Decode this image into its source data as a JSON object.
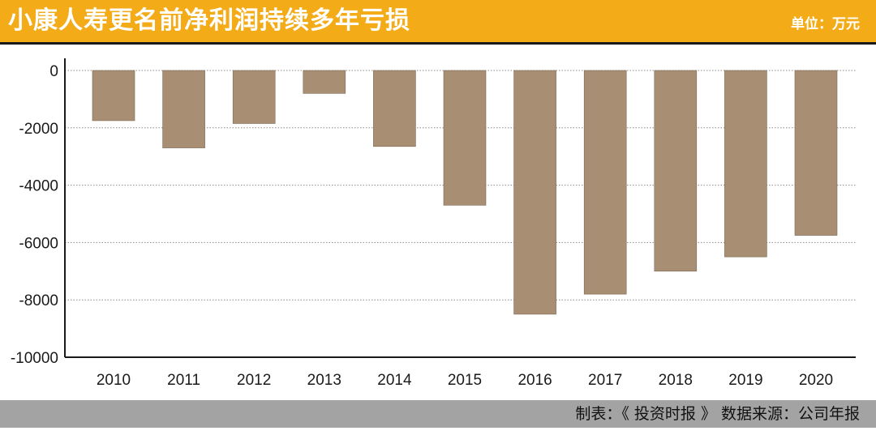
{
  "header": {
    "title": "小康人寿更名前净利润持续多年亏损",
    "unit": "单位：万元"
  },
  "footer": {
    "source": "制表：《 投资时报 》 数据来源：公司年报"
  },
  "colors": {
    "header_bg": "#f3ab18",
    "bar": "#a88e72",
    "footer_bg": "#a3a3a3"
  },
  "chart_data": {
    "type": "bar",
    "categories": [
      "2010",
      "2011",
      "2012",
      "2013",
      "2014",
      "2015",
      "2016",
      "2017",
      "2018",
      "2019",
      "2020"
    ],
    "values": [
      -1750,
      -2700,
      -1850,
      -800,
      -2650,
      -4700,
      -8500,
      -7800,
      -7000,
      -6500,
      -5750
    ],
    "ylim": [
      -10000,
      0
    ],
    "yticks": [
      "0",
      "-2000",
      "-4000",
      "-6000",
      "-8000",
      "-10000"
    ],
    "grid": true
  }
}
